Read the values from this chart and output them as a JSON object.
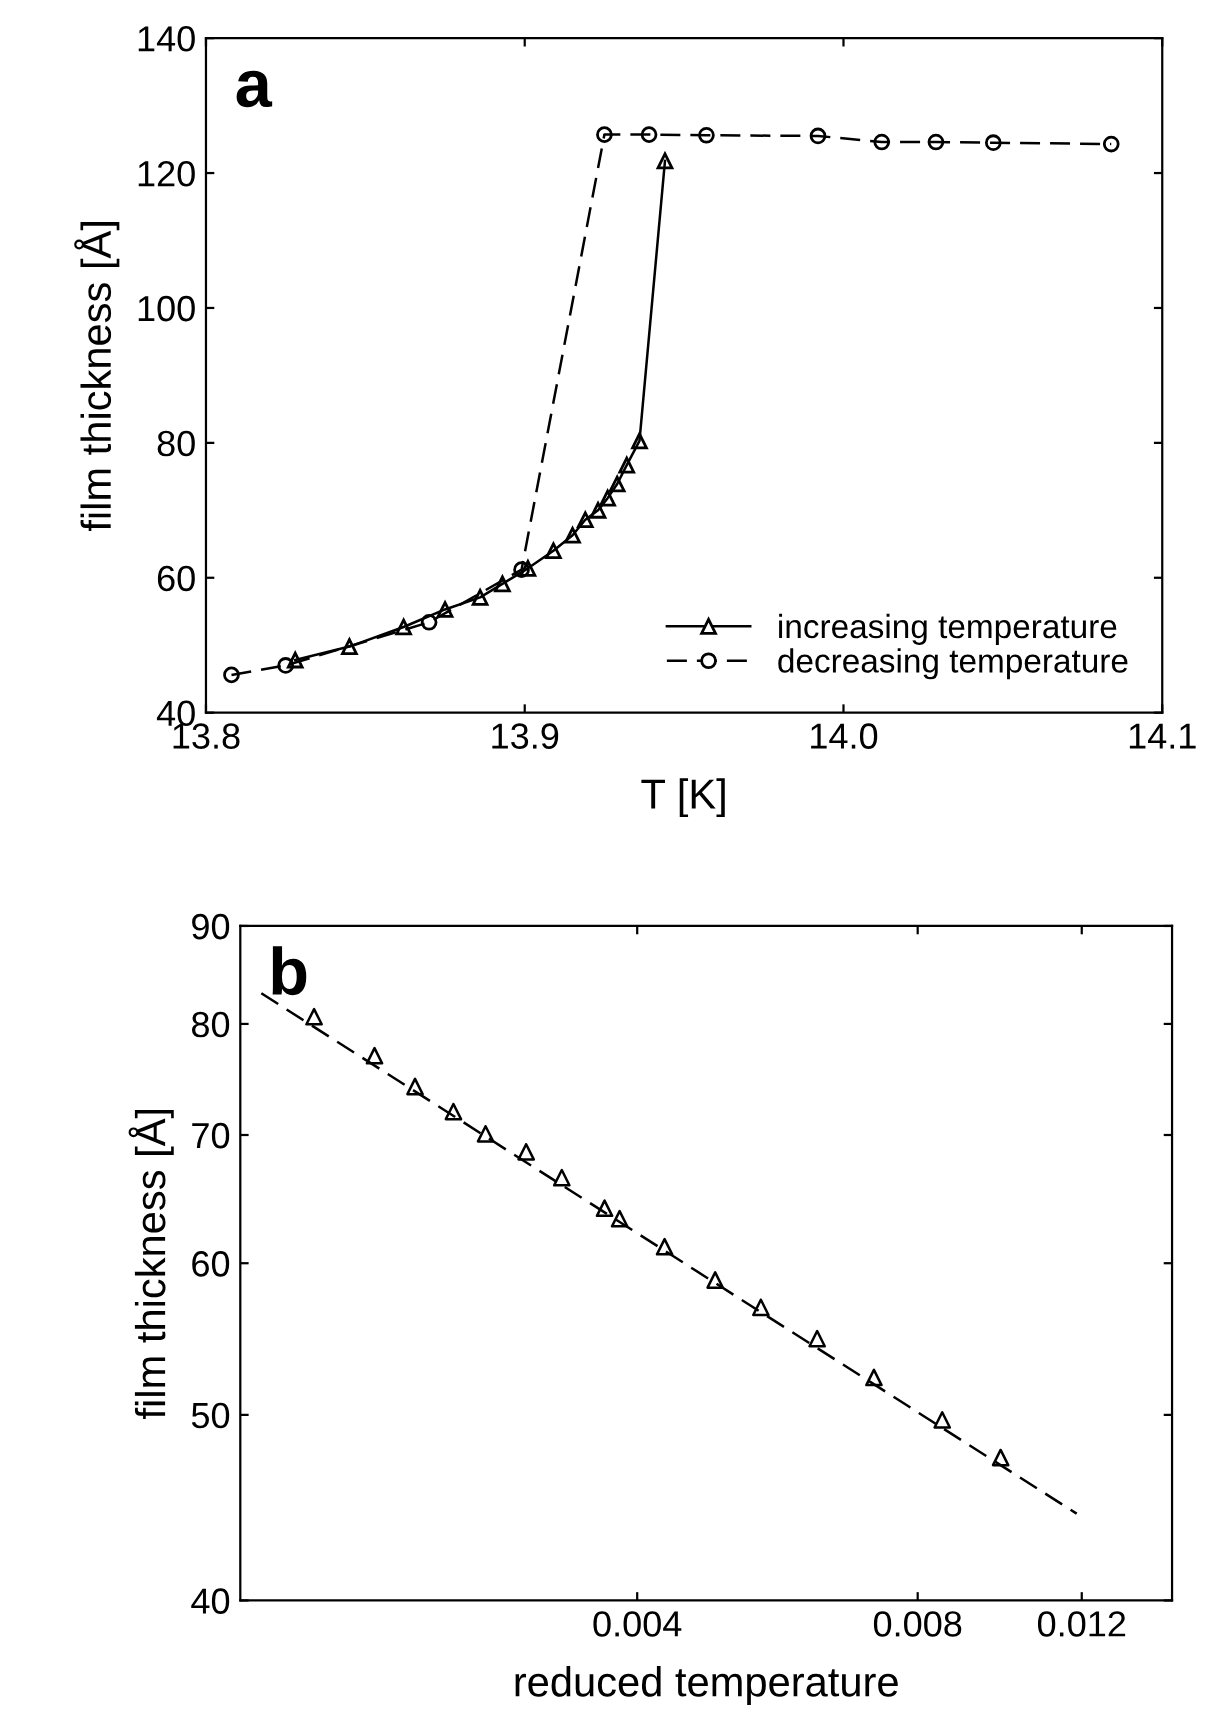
{
  "chart_data": [
    {
      "type": "line",
      "xlabel": "T [K]",
      "ylabel": "film thickness [Å]",
      "annotations": [
        "a"
      ],
      "xlim": [
        13.8,
        14.1
      ],
      "xticks": [
        13.8,
        13.9,
        {
          "value": 14.0,
          "label": "14.0"
        },
        14.1
      ],
      "ylim": [
        40,
        140
      ],
      "yticks": [
        40,
        60,
        80,
        100,
        120,
        140
      ],
      "grid": false,
      "legend": "bottom right",
      "series": [
        {
          "name": "increasing temperature",
          "color": "#000000",
          "marker": "triangle",
          "line_style": "solid",
          "x": [
            13.828,
            13.845,
            13.862,
            13.875,
            13.886,
            13.893,
            13.901,
            13.909,
            13.915,
            13.919,
            13.923,
            13.926,
            13.929,
            13.932,
            13.936,
            13.944
          ],
          "values": [
            47.8,
            49.8,
            52.7,
            55.3,
            57.1,
            59.1,
            61.4,
            64.0,
            66.3,
            68.6,
            70.0,
            71.8,
            73.9,
            76.7,
            80.3,
            121.8
          ]
        },
        {
          "name": "decreasing temperature",
          "color": "#000000",
          "marker": "circle",
          "line_style": "dashed",
          "x": [
            13.808,
            13.825,
            13.87,
            13.899,
            13.925,
            13.939,
            13.957,
            13.992,
            14.012,
            14.029,
            14.047,
            14.084
          ],
          "values": [
            45.6,
            47.0,
            53.4,
            61.2,
            125.7,
            125.7,
            125.6,
            125.5,
            124.6,
            124.6,
            124.5,
            124.3
          ]
        }
      ]
    },
    {
      "type": "scatter",
      "xlabel": "reduced temperature",
      "ylabel": "film thickness [Å]",
      "annotations": [
        "b"
      ],
      "log": "xy",
      "xlim": [
        0.0015,
        0.015
      ],
      "xticks": [
        0.004,
        0.008,
        0.012
      ],
      "ylim": [
        40,
        90
      ],
      "yticks": [
        40,
        50,
        60,
        70,
        80,
        90
      ],
      "grid": false,
      "legend": false,
      "series": [
        {
          "color": "#000000",
          "marker": "triangle",
          "x": [
            0.0018,
            0.00209,
            0.00231,
            0.00254,
            0.00275,
            0.00304,
            0.00332,
            0.00369,
            0.00383,
            0.00428,
            0.00485,
            0.00543,
            0.00624,
            0.00718,
            0.0085,
            0.00982
          ],
          "values": [
            80.7,
            77.0,
            74.2,
            72.0,
            70.1,
            68.6,
            66.5,
            64.1,
            63.3,
            61.2,
            58.8,
            56.9,
            54.8,
            52.3,
            49.7,
            47.5
          ]
        },
        {
          "type": "line",
          "color": "#000000",
          "marker": "none",
          "line_style": "dashed",
          "x": [
            0.00158,
            0.01185
          ],
          "values": [
            83.0,
            44.4
          ]
        }
      ]
    }
  ]
}
